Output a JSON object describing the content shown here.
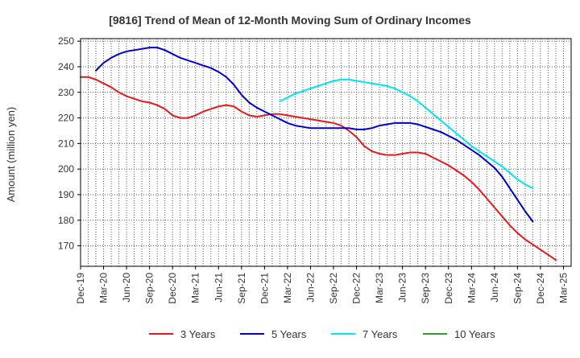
{
  "chart_data": {
    "type": "line",
    "title": "[9816]  Trend of Mean of 12-Month Moving Sum of Ordinary Incomes",
    "xlabel": "",
    "ylabel": "Amount (million yen)",
    "ylim": [
      162,
      251
    ],
    "yticks": [
      170,
      180,
      190,
      200,
      210,
      220,
      230,
      240,
      250
    ],
    "xlim": [
      0,
      64
    ],
    "xtick_labels": [
      "Dec-19",
      "Mar-20",
      "Jun-20",
      "Sep-20",
      "Dec-20",
      "Mar-21",
      "Jun-21",
      "Sep-21",
      "Dec-21",
      "Mar-22",
      "Jun-22",
      "Sep-22",
      "Dec-22",
      "Mar-23",
      "Jun-23",
      "Sep-23",
      "Dec-23",
      "Mar-24",
      "Jun-24",
      "Sep-24",
      "Dec-24",
      "Mar-25"
    ],
    "grid": true,
    "legend_position": "bottom",
    "series": [
      {
        "name": "3 Years",
        "color": "#e41a1c",
        "start": 0,
        "values": [
          236,
          236,
          235,
          233.5,
          232,
          230,
          228.5,
          227.5,
          226.5,
          226,
          225,
          223.5,
          221,
          220,
          220,
          221,
          222.5,
          223.5,
          224.5,
          225,
          224.5,
          222.5,
          221,
          220.5,
          221,
          221.5,
          221.5,
          221,
          220.5,
          220,
          219.5,
          219,
          218.5,
          218,
          217,
          215,
          212.5,
          209,
          207,
          206,
          205.5,
          205.5,
          206,
          206.5,
          206.5,
          206,
          204.5,
          203,
          201.5,
          199.5,
          197.5,
          195,
          192,
          188.5,
          185,
          181.5,
          178,
          175,
          172.5,
          170.5,
          168.5,
          166.5,
          164.5
        ]
      },
      {
        "name": "5 Years",
        "color": "#0000cc",
        "start": 2,
        "values": [
          238.5,
          241.5,
          243.5,
          245,
          246,
          246.5,
          247,
          247.5,
          247.5,
          246.5,
          245,
          243.5,
          242.5,
          241.5,
          240.5,
          239.5,
          238,
          236,
          233,
          229,
          226,
          224,
          222.5,
          221,
          219.5,
          218,
          217,
          216.5,
          216,
          216,
          216,
          216,
          216,
          216,
          215.5,
          215.5,
          216,
          217,
          217.5,
          218,
          218,
          218,
          217.5,
          216.5,
          215.5,
          214.5,
          213,
          211.5,
          209.5,
          207.5,
          205.5,
          203,
          200.5,
          197,
          192.5,
          188,
          183.5,
          179.5
        ]
      },
      {
        "name": "7 Years",
        "color": "#00e5ee",
        "start": 26,
        "values": [
          226.5,
          228,
          229.5,
          230.5,
          231.5,
          232.5,
          233.5,
          234.5,
          235,
          235,
          234.5,
          234,
          233.5,
          233,
          232.5,
          231.5,
          230,
          228.5,
          226.5,
          224,
          221.5,
          219,
          216.5,
          214,
          211.5,
          209,
          207,
          205,
          203,
          201,
          198.5,
          196,
          194,
          192.5
        ]
      },
      {
        "name": "10 Years",
        "color": "#339933",
        "start": 0,
        "values": []
      }
    ]
  }
}
